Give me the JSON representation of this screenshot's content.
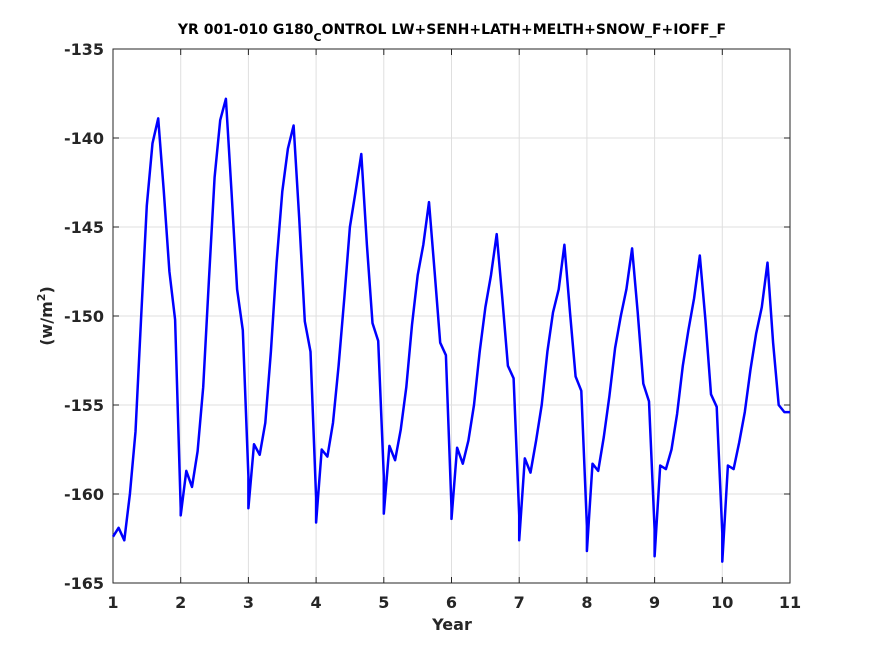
{
  "chart_data": {
    "type": "line",
    "title_main": "YR 001-010 G180",
    "title_sub": "C",
    "title_rest": "ONTROL LW+SENH+LATH+MELTH+SNOW_F+IOFF_F",
    "xlabel": "Year",
    "ylabel_main": "(w/m",
    "ylabel_sup": "2",
    "ylabel_end": ")",
    "xlim": [
      1,
      11
    ],
    "ylim": [
      -165,
      -135
    ],
    "xticks": [
      1,
      2,
      3,
      4,
      5,
      6,
      7,
      8,
      9,
      10,
      11
    ],
    "yticks": [
      -135,
      -140,
      -145,
      -150,
      -155,
      -160,
      -165
    ],
    "grid": true,
    "line_color": "#0000ff",
    "series": [
      {
        "x": [
          1.0,
          1.083,
          1.167,
          1.25,
          1.333,
          1.417,
          1.5,
          1.583,
          1.667,
          1.75,
          1.833,
          1.917,
          2.0,
          2.0,
          2.083,
          2.167,
          2.25,
          2.333,
          2.417,
          2.5,
          2.583,
          2.667,
          2.75,
          2.833,
          2.917,
          3.0,
          3.0,
          3.083,
          3.167,
          3.25,
          3.333,
          3.417,
          3.5,
          3.583,
          3.667,
          3.75,
          3.833,
          3.917,
          4.0,
          4.0,
          4.083,
          4.167,
          4.25,
          4.333,
          4.417,
          4.5,
          4.583,
          4.667,
          4.75,
          4.833,
          4.917,
          5.0,
          5.0,
          5.083,
          5.167,
          5.25,
          5.333,
          5.417,
          5.5,
          5.583,
          5.667,
          5.75,
          5.833,
          5.917,
          6.0,
          6.0,
          6.083,
          6.167,
          6.25,
          6.333,
          6.417,
          6.5,
          6.583,
          6.667,
          6.75,
          6.833,
          6.917,
          7.0,
          7.0,
          7.083,
          7.167,
          7.25,
          7.333,
          7.417,
          7.5,
          7.583,
          7.667,
          7.75,
          7.833,
          7.917,
          8.0,
          8.0,
          8.083,
          8.167,
          8.25,
          8.333,
          8.417,
          8.5,
          8.583,
          8.667,
          8.75,
          8.833,
          8.917,
          9.0,
          9.0,
          9.083,
          9.167,
          9.25,
          9.333,
          9.417,
          9.5,
          9.583,
          9.667,
          9.75,
          9.833,
          9.917,
          10.0,
          10.0,
          10.083,
          10.167,
          10.25,
          10.333,
          10.417,
          10.5,
          10.583,
          10.667,
          10.75,
          10.833,
          10.917,
          11.0
        ],
        "y": [
          -162.4,
          -161.9,
          -162.6,
          -160.0,
          -156.5,
          -150.0,
          -143.8,
          -140.3,
          -138.9,
          -143.0,
          -147.5,
          -150.2,
          -160.8,
          -161.2,
          -158.7,
          -159.6,
          -157.6,
          -154.0,
          -148.0,
          -142.2,
          -139.0,
          -137.8,
          -143.0,
          -148.5,
          -150.8,
          -159.0,
          -160.8,
          -157.2,
          -157.8,
          -156.0,
          -152.0,
          -147.0,
          -143.0,
          -140.6,
          -139.3,
          -144.5,
          -150.3,
          -152.0,
          -160.2,
          -161.6,
          -157.5,
          -157.9,
          -156.0,
          -152.8,
          -149.0,
          -145.0,
          -143.0,
          -140.9,
          -146.0,
          -150.4,
          -151.4,
          -159.0,
          -161.1,
          -157.3,
          -158.1,
          -156.4,
          -154.0,
          -150.5,
          -147.7,
          -146.0,
          -143.6,
          -147.5,
          -151.5,
          -152.2,
          -160.8,
          -161.4,
          -157.4,
          -158.3,
          -157.0,
          -155.0,
          -152.0,
          -149.5,
          -147.7,
          -145.4,
          -149.0,
          -152.8,
          -153.5,
          -161.2,
          -162.6,
          -158.0,
          -158.8,
          -157.0,
          -155.0,
          -152.0,
          -149.8,
          -148.5,
          -146.0,
          -149.8,
          -153.4,
          -154.2,
          -161.8,
          -163.2,
          -158.3,
          -158.7,
          -156.8,
          -154.5,
          -151.8,
          -150.0,
          -148.5,
          -146.2,
          -149.8,
          -153.8,
          -154.8,
          -162.0,
          -163.5,
          -158.4,
          -158.6,
          -157.5,
          -155.5,
          -152.8,
          -150.8,
          -149.0,
          -146.6,
          -150.2,
          -154.4,
          -155.1,
          -162.2,
          -163.8,
          -158.4,
          -158.6,
          -157.1,
          -155.4,
          -153.0,
          -151.0,
          -149.5,
          -147.0,
          -151.5,
          -155.0,
          -155.4,
          -155.4
        ]
      }
    ]
  }
}
